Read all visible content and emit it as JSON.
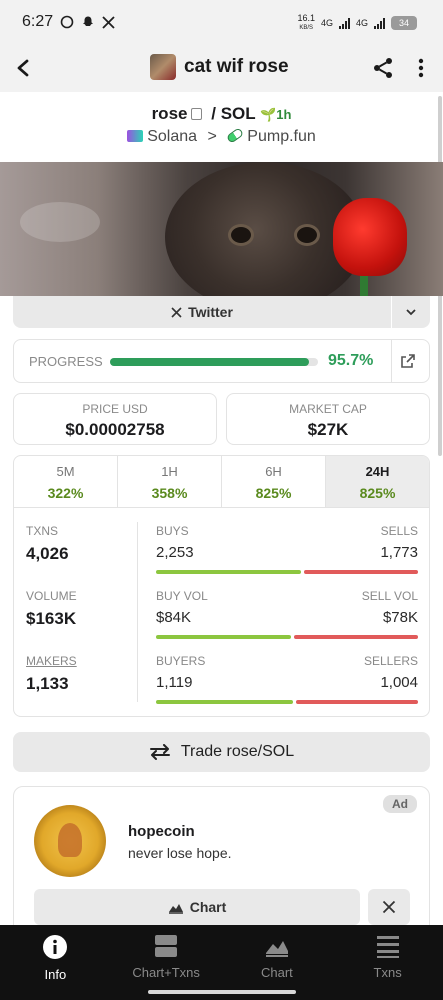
{
  "status_bar": {
    "time": "6:27",
    "net_speed": "16.1",
    "net_speed_unit": "KB/S",
    "signal1": "4G",
    "signal2": "4G",
    "battery": "34"
  },
  "header": {
    "title": "cat wif rose"
  },
  "pair": {
    "base": "rose",
    "sep": "/",
    "quote": "SOL",
    "timeframe": "1h"
  },
  "chain": {
    "network": "Solana",
    "sep": ">",
    "dex": "Pump.fun"
  },
  "social": {
    "twitter_label": "Twitter"
  },
  "progress": {
    "label": "PROGRESS",
    "percent_text": "95.7%",
    "value": 0.957
  },
  "price": {
    "label": "PRICE USD",
    "value": "$0.00002758"
  },
  "market_cap": {
    "label": "MARKET CAP",
    "value": "$27K"
  },
  "tabs": [
    {
      "label": "5M",
      "value": "322%"
    },
    {
      "label": "1H",
      "value": "358%"
    },
    {
      "label": "6H",
      "value": "825%"
    },
    {
      "label": "24H",
      "value": "825%"
    }
  ],
  "stats": {
    "txns": {
      "label": "TXNS",
      "value": "4,026"
    },
    "volume": {
      "label": "VOLUME",
      "value": "$163K"
    },
    "makers": {
      "label": "MAKERS",
      "value": "1,133"
    },
    "buys_sells": {
      "left_label": "BUYS",
      "left_value": "2,253",
      "right_label": "SELLS",
      "right_value": "1,773",
      "ratio": 0.56
    },
    "vol": {
      "left_label": "BUY VOL",
      "left_value": "$84K",
      "right_label": "SELL VOL",
      "right_value": "$78K",
      "ratio": 0.52
    },
    "buyers_sellers": {
      "left_label": "BUYERS",
      "left_value": "1,119",
      "right_label": "SELLERS",
      "right_value": "1,004",
      "ratio": 0.53
    }
  },
  "trade": {
    "label": "Trade rose/SOL"
  },
  "ad": {
    "badge": "Ad",
    "name": "hopecoin",
    "description": "never lose hope.",
    "chart_label": "Chart"
  },
  "nav": [
    {
      "label": "Info",
      "icon": "info-icon",
      "active": true
    },
    {
      "label": "Chart+Txns",
      "icon": "chart-txns-icon",
      "active": false
    },
    {
      "label": "Chart",
      "icon": "chart-icon",
      "active": false
    },
    {
      "label": "Txns",
      "icon": "txns-icon",
      "active": false
    }
  ],
  "colors": {
    "green": "#2e9d5a",
    "buy_bar": "#8cc63f",
    "sell_bar": "#e15a5a",
    "percent": "#5a8a1e"
  }
}
